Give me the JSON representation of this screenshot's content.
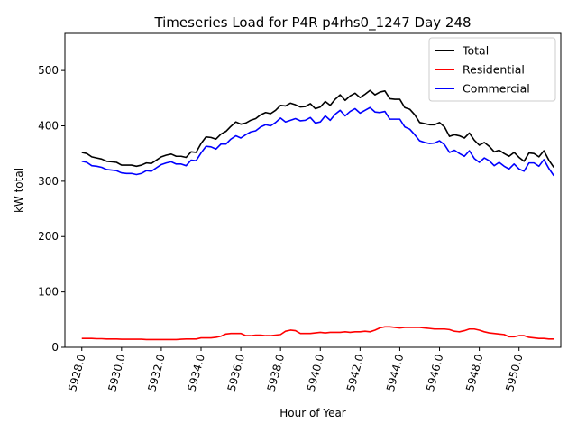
{
  "chart_data": {
    "type": "line",
    "title": "Timeseries Load for P4R p4rhs0_1247  Day 248",
    "xlabel": "Hour of Year",
    "ylabel": "kW total",
    "xlim": [
      5927.15,
      5952.1
    ],
    "ylim": [
      0,
      567
    ],
    "x_ticks": [
      5928,
      5930,
      5932,
      5934,
      5936,
      5938,
      5940,
      5942,
      5944,
      5946,
      5948,
      5950
    ],
    "x_tick_labels": [
      "5928.0",
      "5930.0",
      "5932.0",
      "5934.0",
      "5936.0",
      "5938.0",
      "5940.0",
      "5942.0",
      "5944.0",
      "5946.0",
      "5948.0",
      "5950.0"
    ],
    "y_ticks": [
      0,
      100,
      200,
      300,
      400,
      500
    ],
    "y_tick_labels": [
      "0",
      "100",
      "200",
      "300",
      "400",
      "500"
    ],
    "legend_position": "top-right",
    "x_start": 5928.0,
    "x_step": 0.25,
    "series": [
      {
        "name": "Total",
        "color": "#000000",
        "values": [
          352,
          350,
          344,
          342,
          340,
          336,
          335,
          334,
          329,
          329,
          329,
          327,
          329,
          333,
          332,
          338,
          344,
          347,
          349,
          345,
          345,
          343,
          353,
          352,
          368,
          380,
          379,
          376,
          385,
          390,
          399,
          407,
          403,
          405,
          410,
          413,
          420,
          424,
          422,
          428,
          437,
          436,
          441,
          438,
          434,
          435,
          440,
          431,
          434,
          444,
          437,
          448,
          456,
          446,
          454,
          459,
          451,
          457,
          464,
          456,
          461,
          463,
          449,
          448,
          448,
          433,
          430,
          420,
          406,
          404,
          402,
          402,
          406,
          398,
          381,
          384,
          382,
          378,
          387,
          374,
          365,
          370,
          363,
          353,
          356,
          350,
          345,
          352,
          343,
          336,
          351,
          350,
          344,
          355,
          338,
          325
        ]
      },
      {
        "name": "Residential",
        "color": "#ff0000",
        "values": [
          16,
          16,
          16,
          15.5,
          15.5,
          15,
          15,
          15,
          14.5,
          14.5,
          14.5,
          14.5,
          14.5,
          14,
          14,
          14,
          14,
          14,
          14,
          14,
          14.5,
          15,
          15,
          15,
          17,
          17,
          17,
          18,
          20,
          24,
          25,
          25,
          25,
          21,
          21,
          22,
          22,
          21,
          21,
          22,
          23,
          29,
          31,
          30,
          25,
          25,
          25,
          26,
          27,
          26,
          27,
          27,
          27,
          28,
          27,
          28,
          28,
          29,
          28,
          31,
          35,
          37,
          37,
          36,
          35,
          36,
          36,
          36,
          36,
          35,
          34,
          33,
          33,
          33,
          32,
          29,
          28,
          30,
          33,
          33,
          31,
          28,
          26,
          25,
          24,
          23,
          19,
          19,
          21,
          21,
          18,
          17,
          16,
          16,
          15,
          15
        ]
      },
      {
        "name": "Commercial",
        "color": "#0000ff",
        "values": [
          336,
          334,
          328,
          327,
          325,
          321,
          320,
          319,
          315,
          314,
          314,
          312,
          314,
          319,
          318,
          324,
          330,
          333,
          335,
          331,
          331,
          328,
          338,
          337,
          351,
          363,
          362,
          358,
          367,
          367,
          376,
          382,
          378,
          384,
          389,
          391,
          398,
          402,
          400,
          406,
          414,
          407,
          410,
          413,
          409,
          410,
          415,
          405,
          407,
          418,
          410,
          421,
          428,
          418,
          426,
          431,
          423,
          428,
          433,
          425,
          424,
          426,
          412,
          412,
          412,
          398,
          394,
          384,
          373,
          370,
          368,
          369,
          373,
          366,
          352,
          356,
          350,
          345,
          355,
          341,
          334,
          342,
          337,
          328,
          334,
          327,
          322,
          331,
          322,
          318,
          333,
          333,
          327,
          339,
          323,
          310
        ]
      }
    ]
  }
}
